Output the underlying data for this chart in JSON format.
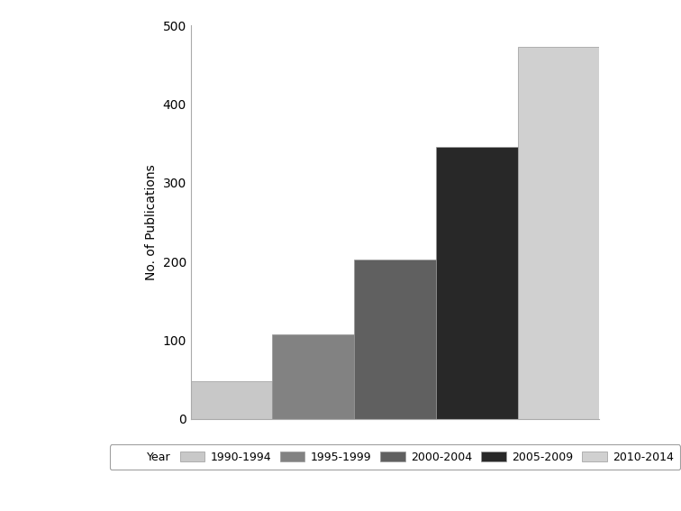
{
  "categories": [
    "1990-1994",
    "1995-1999",
    "2000-2004",
    "2005-2009",
    "2010-2014"
  ],
  "values": [
    48,
    108,
    203,
    346,
    473
  ],
  "bar_colors": [
    "#c8c8c8",
    "#828282",
    "#606060",
    "#282828",
    "#d0d0d0"
  ],
  "ylabel": "No. of Publications",
  "ylim": [
    0,
    500
  ],
  "yticks": [
    0,
    100,
    200,
    300,
    400,
    500
  ],
  "legend_label": "Year",
  "background_color": "#ffffff",
  "bar_edge_color": "#999999",
  "bar_width": 1.0,
  "ylabel_fontsize": 10,
  "legend_fontsize": 9
}
